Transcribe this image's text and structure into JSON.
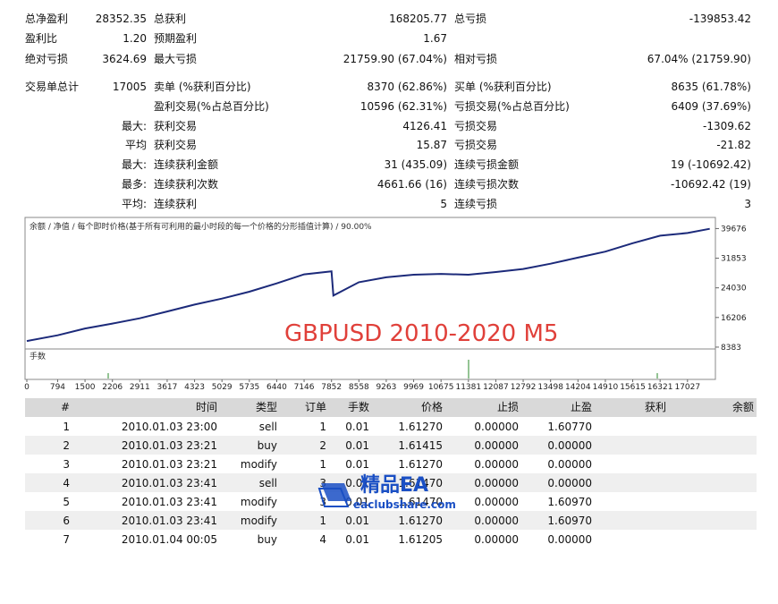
{
  "stats": {
    "rows": [
      {
        "label1": "总净盈利",
        "value1": "28352.35",
        "label2": "总获利",
        "value2": "168205.77",
        "label3": "总亏损",
        "value3": "-139853.42"
      },
      {
        "label1": "盈利比",
        "value1": "1.20",
        "label2": "预期盈利",
        "value2": "1.67"
      },
      {
        "label1": "绝对亏损",
        "value1": "3624.69",
        "label2": "最大亏损",
        "value2": "21759.90 (67.04%)",
        "label3": "相对亏损",
        "value3": "67.04% (21759.90)"
      },
      {
        "label1": "交易单总计",
        "value1": "17005",
        "label2": "卖单 (%获利百分比)",
        "value2": "8370 (62.86%)",
        "label3": "买单 (%获利百分比)",
        "value3": "8635 (61.78%)"
      },
      {
        "label2": "盈利交易(%占总百分比)",
        "value2": "10596 (62.31%)",
        "label3": "亏损交易(%占总百分比)",
        "value3": "6409 (37.69%)"
      },
      {
        "prefix": "最大:",
        "label2": "获利交易",
        "value2": "4126.41",
        "label3": "亏损交易",
        "value3": "-1309.62"
      },
      {
        "prefix": "平均",
        "label2": "获利交易",
        "value2": "15.87",
        "label3": "亏损交易",
        "value3": "-21.82"
      },
      {
        "prefix": "最大:",
        "label2": "连续获利金额",
        "value2": "31 (435.09)",
        "label3": "连续亏损金额",
        "value3": "19 (-10692.42)"
      },
      {
        "prefix": "最多:",
        "label2": "连续获利次数",
        "value2": "4661.66 (16)",
        "label3": "连续亏损次数",
        "value3": "-10692.42 (19)"
      },
      {
        "prefix": "平均:",
        "label2": "连续获利",
        "value2": "5",
        "label3": "连续亏损",
        "value3": "3"
      }
    ]
  },
  "chart": {
    "type": "line",
    "header": "余额 / 净值 / 每个即时价格(基于所有可利用的最小时段的每一个价格的分形插值计算) / 90.00%",
    "overlay": "GBPUSD 2010-2020 M5",
    "volume_label": "手数",
    "color": "#1c2a7a",
    "x": [
      0,
      794,
      1500,
      2206,
      2911,
      3617,
      4323,
      5029,
      5735,
      6440,
      7146,
      7852,
      7900,
      8558,
      9263,
      9969,
      10675,
      11381,
      12087,
      12792,
      13498,
      14204,
      14910,
      15615,
      16321,
      17027,
      17600
    ],
    "values": [
      10000,
      11500,
      13300,
      14600,
      16000,
      17800,
      19600,
      21200,
      23000,
      25200,
      27600,
      28400,
      22000,
      25500,
      26800,
      27500,
      27700,
      27500,
      28200,
      29000,
      30400,
      32000,
      33600,
      35800,
      37800,
      38500,
      39600
    ],
    "xlim": [
      0,
      17700
    ],
    "ylim": [
      7894,
      42610
    ],
    "xticks": [
      0,
      794,
      1500,
      2206,
      2911,
      3617,
      4323,
      5029,
      5735,
      6440,
      7146,
      7852,
      8558,
      9263,
      9969,
      10675,
      11381,
      12087,
      12792,
      13498,
      14204,
      14910,
      15615,
      16321,
      17027
    ],
    "yticks": [
      8383,
      16206,
      24030,
      31853,
      39676
    ]
  },
  "table": {
    "columns": [
      "#",
      "时间",
      "类型",
      "订单",
      "手数",
      "价格",
      "止损",
      "止盈",
      "获利",
      "余额"
    ],
    "rows": [
      [
        "1",
        "2010.01.03 23:00",
        "sell",
        "1",
        "0.01",
        "1.61270",
        "0.00000",
        "1.60770"
      ],
      [
        "2",
        "2010.01.03 23:21",
        "buy",
        "2",
        "0.01",
        "1.61415",
        "0.00000",
        "0.00000"
      ],
      [
        "3",
        "2010.01.03 23:21",
        "modify",
        "1",
        "0.01",
        "1.61270",
        "0.00000",
        "0.00000"
      ],
      [
        "4",
        "2010.01.03 23:41",
        "sell",
        "3",
        "0.01",
        "1.61470",
        "0.00000",
        "0.00000"
      ],
      [
        "5",
        "2010.01.03 23:41",
        "modify",
        "3",
        "0.01",
        "1.61470",
        "0.00000",
        "1.60970"
      ],
      [
        "6",
        "2010.01.03 23:41",
        "modify",
        "1",
        "0.01",
        "1.61270",
        "0.00000",
        "1.60970"
      ],
      [
        "7",
        "2010.01.04 00:05",
        "buy",
        "4",
        "0.01",
        "1.61205",
        "0.00000",
        "0.00000"
      ]
    ]
  },
  "watermark": {
    "title": "精品EA",
    "url": "eaclubshare.com"
  }
}
